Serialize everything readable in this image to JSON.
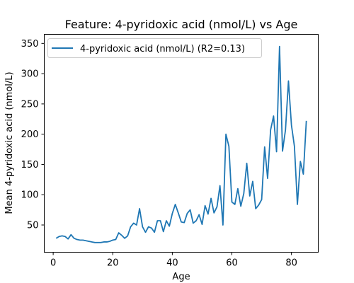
{
  "chart_data": {
    "type": "line",
    "title": "Feature: 4-pyridoxic acid (nmol/L) vs Age",
    "xlabel": "Age",
    "ylabel": "Mean 4-pyridoxic acid (nmol/L)",
    "xlim": [
      -3,
      89
    ],
    "ylim": [
      5,
      365
    ],
    "xticks": [
      0,
      20,
      40,
      60,
      80
    ],
    "yticks": [
      50,
      100,
      150,
      200,
      250,
      300,
      350
    ],
    "legend": {
      "position": "upper-left"
    },
    "grid": false,
    "series": [
      {
        "name": "4-pyridoxic acid (nmol/L) (R2=0.13)",
        "color": "#1f77b4",
        "x": [
          1,
          2,
          3,
          4,
          5,
          6,
          7,
          8,
          9,
          10,
          11,
          12,
          13,
          14,
          15,
          16,
          17,
          18,
          19,
          20,
          21,
          22,
          23,
          24,
          25,
          26,
          27,
          28,
          29,
          30,
          31,
          32,
          33,
          34,
          35,
          36,
          37,
          38,
          39,
          40,
          41,
          42,
          43,
          44,
          45,
          46,
          47,
          48,
          49,
          50,
          51,
          52,
          53,
          54,
          55,
          56,
          57,
          58,
          59,
          60,
          61,
          62,
          63,
          64,
          65,
          66,
          67,
          68,
          69,
          70,
          71,
          72,
          73,
          74,
          75,
          76,
          77,
          78,
          79,
          80,
          81,
          82,
          83,
          84,
          85
        ],
        "y": [
          28,
          31,
          32,
          31,
          27,
          34,
          28,
          26,
          25,
          25,
          24,
          23,
          22,
          21,
          21,
          21,
          22,
          22,
          23,
          25,
          26,
          37,
          33,
          28,
          32,
          47,
          53,
          50,
          77,
          47,
          38,
          47,
          45,
          38,
          57,
          57,
          39,
          57,
          48,
          69,
          84,
          70,
          55,
          54,
          69,
          75,
          53,
          57,
          67,
          51,
          82,
          68,
          94,
          70,
          80,
          115,
          50,
          200,
          180,
          88,
          84,
          110,
          81,
          102,
          152,
          98,
          122,
          77,
          83,
          92,
          179,
          127,
          207,
          230,
          171,
          345,
          172,
          207,
          288,
          215,
          180,
          84,
          155,
          134,
          222
        ]
      }
    ]
  }
}
